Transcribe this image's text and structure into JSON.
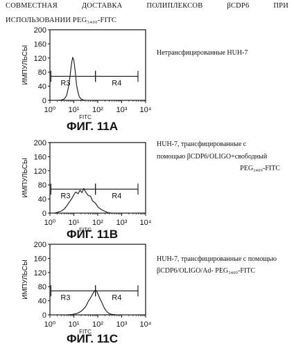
{
  "header": {
    "words": [
      "СОВМЕСТНАЯ",
      "ДОСТАВКА",
      "ПОЛИПЛЕКСОВ",
      "βCDP6",
      "ПРИ"
    ],
    "line2": "ИСПОЛЬЗОВАНИИ PEG₃₄₀₀-FITC"
  },
  "chart_data": [
    {
      "type": "line",
      "title": "ФИГ. 11А",
      "xlabel": "FITC",
      "ylabel": "ИМПУЛЬСЫ",
      "xscale": "log",
      "xlim": [
        1,
        10000
      ],
      "ylim": [
        0,
        200
      ],
      "x_tick_labels": [
        "10⁰",
        "10¹",
        "10²",
        "10³",
        "10⁴"
      ],
      "y_tick_labels": [
        "0",
        "40",
        "80",
        "120",
        "160",
        "200"
      ],
      "annotation": "Нетрансфицированные HUH-7",
      "gates": [
        {
          "name": "R3",
          "from": 1.1,
          "to": 80,
          "y": 68
        },
        {
          "name": "R4",
          "from": 80,
          "to": 4800,
          "y": 68
        }
      ],
      "series": [
        {
          "x": [
            2,
            3,
            4,
            5,
            6,
            7,
            8,
            9,
            10,
            11,
            12,
            13,
            15,
            17,
            20,
            25,
            30,
            40
          ],
          "y": [
            0,
            1,
            4,
            14,
            38,
            72,
            105,
            122,
            113,
            92,
            68,
            44,
            22,
            10,
            4,
            1,
            0,
            0
          ]
        }
      ]
    },
    {
      "type": "line",
      "title": "ФИГ. 11В",
      "xlabel": "FITC",
      "ylabel": "ИМПУЛЬСЫ",
      "xscale": "log",
      "xlim": [
        1,
        10000
      ],
      "ylim": [
        0,
        200
      ],
      "x_tick_labels": [
        "10⁰",
        "10¹",
        "10²",
        "10³",
        "10⁴"
      ],
      "y_tick_labels": [
        "0",
        "40",
        "80",
        "120",
        "160",
        "200"
      ],
      "annotation": [
        "HUH-7, трансфицированные с",
        "помощью βCDP6/OLIGO+свободный",
        "PEG₃₄₀₀-FITC"
      ],
      "gates": [
        {
          "name": "R3",
          "from": 1.1,
          "to": 80,
          "y": 68
        },
        {
          "name": "R4",
          "from": 80,
          "to": 4800,
          "y": 68
        }
      ],
      "series": [
        {
          "x": [
            1.5,
            2,
            3,
            4,
            5,
            6,
            8,
            10,
            12,
            15,
            18,
            22,
            26,
            30,
            35,
            40,
            50,
            60,
            80,
            100,
            130,
            160,
            200,
            250,
            300,
            400
          ],
          "y": [
            0,
            2,
            6,
            12,
            20,
            28,
            40,
            52,
            60,
            55,
            65,
            58,
            70,
            62,
            55,
            50,
            48,
            35,
            28,
            18,
            12,
            8,
            5,
            2,
            1,
            0
          ]
        }
      ]
    },
    {
      "type": "line",
      "title": "ФИГ. 11С",
      "xlabel": "FITC",
      "ylabel": "ИМПУЛЬСЫ",
      "xscale": "log",
      "xlim": [
        1,
        10000
      ],
      "ylim": [
        0,
        200
      ],
      "x_tick_labels": [
        "10⁰",
        "10¹",
        "10²",
        "10³",
        "10⁴"
      ],
      "y_tick_labels": [
        "0",
        "40",
        "80",
        "120",
        "160",
        "200"
      ],
      "annotation": [
        "HUH-7, трансфицированные с помощью",
        "βCDP6/OLIGO/Ad- PEG₃₄₀₀-FITC"
      ],
      "gates": [
        {
          "name": "R3",
          "from": 1.1,
          "to": 80,
          "y": 68
        },
        {
          "name": "R4",
          "from": 80,
          "to": 4800,
          "y": 68
        }
      ],
      "series": [
        {
          "x": [
            5,
            8,
            10,
            15,
            20,
            25,
            30,
            35,
            40,
            50,
            60,
            70,
            80,
            90,
            100,
            120,
            150,
            180,
            220,
            280,
            350,
            450,
            600
          ],
          "y": [
            0,
            1,
            2,
            5,
            10,
            16,
            22,
            30,
            38,
            48,
            58,
            66,
            70,
            67,
            60,
            48,
            34,
            22,
            12,
            5,
            2,
            1,
            0
          ]
        }
      ]
    }
  ]
}
